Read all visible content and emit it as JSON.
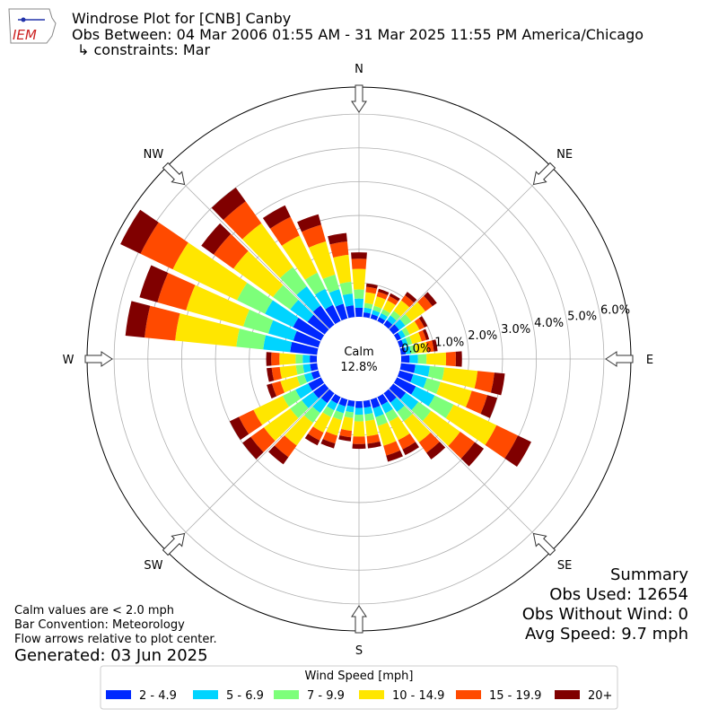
{
  "logo_text": "IEM",
  "title_lines": [
    "Windrose Plot for [CNB] Canby",
    "Obs Between: 04 Mar 2006 01:55 AM - 31 Mar 2025 11:55 PM America/Chicago",
    "↳ constraints: Mar"
  ],
  "notes": [
    "Calm values are < 2.0 mph",
    "Bar Convention: Meteorology",
    "Flow arrows relative to plot center."
  ],
  "generated": "Generated: 03 Jun 2025",
  "summary": [
    "Summary",
    "Obs Used: 12654",
    "Obs Without Wind: 0",
    "Avg Speed: 9.7 mph"
  ],
  "chart_data": {
    "type": "windrose",
    "calm": {
      "label": "Calm",
      "value": 12.8,
      "value_label": "12.8%"
    },
    "legend_title": "Wind Speed [mph]",
    "legend_position": "bottom",
    "directions": [
      0,
      10,
      20,
      30,
      40,
      50,
      60,
      70,
      80,
      90,
      100,
      110,
      120,
      130,
      140,
      150,
      160,
      170,
      180,
      190,
      200,
      210,
      220,
      230,
      240,
      250,
      260,
      270,
      280,
      290,
      300,
      310,
      320,
      330,
      340,
      350
    ],
    "rlim": [
      0,
      6.8
    ],
    "rticks": [
      {
        "value": 0,
        "label": "0.0%"
      },
      {
        "value": 1,
        "label": "1.0%"
      },
      {
        "value": 2,
        "label": "2.0%"
      },
      {
        "value": 3,
        "label": "3.0%"
      },
      {
        "value": 4,
        "label": "4.0%"
      },
      {
        "value": 5,
        "label": "5.0%"
      },
      {
        "value": 6,
        "label": "6.0%"
      }
    ],
    "thetaticks": [
      {
        "value": 0,
        "label": "N"
      },
      {
        "value": 45,
        "label": "NE"
      },
      {
        "value": 90,
        "label": "E"
      },
      {
        "value": 135,
        "label": "SE"
      },
      {
        "value": 180,
        "label": "S"
      },
      {
        "value": 225,
        "label": "SW"
      },
      {
        "value": 270,
        "label": "W"
      },
      {
        "value": 315,
        "label": "NW"
      }
    ],
    "series": [
      {
        "name": "2 - 4.9",
        "color": "#0028ff",
        "values": [
          0.27,
          0.14,
          0.13,
          0.13,
          0.17,
          0.22,
          0.14,
          0.13,
          0.15,
          0.25,
          0.43,
          0.42,
          0.62,
          0.46,
          0.34,
          0.27,
          0.27,
          0.2,
          0.2,
          0.17,
          0.21,
          0.22,
          0.36,
          0.42,
          0.42,
          0.22,
          0.21,
          0.21,
          0.8,
          0.77,
          0.92,
          0.63,
          0.7,
          0.53,
          0.45,
          0.35
        ]
      },
      {
        "name": "5 - 6.9",
        "color": "#00d4ff",
        "values": [
          0.27,
          0.14,
          0.13,
          0.13,
          0.17,
          0.22,
          0.14,
          0.13,
          0.15,
          0.25,
          0.43,
          0.42,
          0.62,
          0.46,
          0.34,
          0.27,
          0.27,
          0.2,
          0.2,
          0.17,
          0.21,
          0.22,
          0.36,
          0.42,
          0.42,
          0.22,
          0.21,
          0.21,
          0.8,
          0.77,
          0.92,
          0.63,
          0.7,
          0.53,
          0.45,
          0.35
        ]
      },
      {
        "name": "7 - 9.9",
        "color": "#7dff7a",
        "values": [
          0.27,
          0.14,
          0.13,
          0.13,
          0.17,
          0.22,
          0.14,
          0.13,
          0.15,
          0.25,
          0.43,
          0.42,
          0.62,
          0.46,
          0.34,
          0.27,
          0.27,
          0.2,
          0.2,
          0.17,
          0.21,
          0.22,
          0.36,
          0.42,
          0.42,
          0.22,
          0.21,
          0.21,
          0.8,
          0.77,
          0.92,
          0.63,
          0.7,
          0.53,
          0.45,
          0.35
        ]
      },
      {
        "name": "10 - 14.9",
        "color": "#ffe600",
        "values": [
          0.61,
          0.32,
          0.29,
          0.29,
          0.38,
          0.51,
          0.32,
          0.29,
          0.35,
          0.58,
          0.99,
          0.96,
          1.41,
          1.06,
          0.77,
          0.61,
          0.61,
          0.45,
          0.45,
          0.38,
          0.48,
          0.51,
          0.83,
          0.96,
          0.96,
          0.51,
          0.48,
          0.48,
          1.82,
          1.76,
          2.11,
          1.44,
          1.6,
          1.22,
          1.02,
          0.8
        ]
      },
      {
        "name": "15 - 19.9",
        "color": "#ff4a00",
        "values": [
          0.3,
          0.16,
          0.14,
          0.14,
          0.19,
          0.26,
          0.16,
          0.14,
          0.18,
          0.29,
          0.5,
          0.48,
          0.7,
          0.53,
          0.38,
          0.3,
          0.3,
          0.22,
          0.22,
          0.19,
          0.24,
          0.26,
          0.42,
          0.48,
          0.48,
          0.26,
          0.24,
          0.24,
          0.91,
          0.88,
          1.06,
          0.72,
          0.8,
          0.61,
          0.51,
          0.4
        ]
      },
      {
        "name": "20+",
        "color": "#800000",
        "values": [
          0.19,
          0.1,
          0.09,
          0.09,
          0.12,
          0.16,
          0.1,
          0.09,
          0.11,
          0.18,
          0.31,
          0.3,
          0.44,
          0.33,
          0.24,
          0.19,
          0.19,
          0.14,
          0.14,
          0.12,
          0.15,
          0.16,
          0.26,
          0.3,
          0.3,
          0.16,
          0.15,
          0.15,
          0.57,
          0.55,
          0.66,
          0.45,
          0.5,
          0.38,
          0.32,
          0.25
        ]
      }
    ]
  }
}
